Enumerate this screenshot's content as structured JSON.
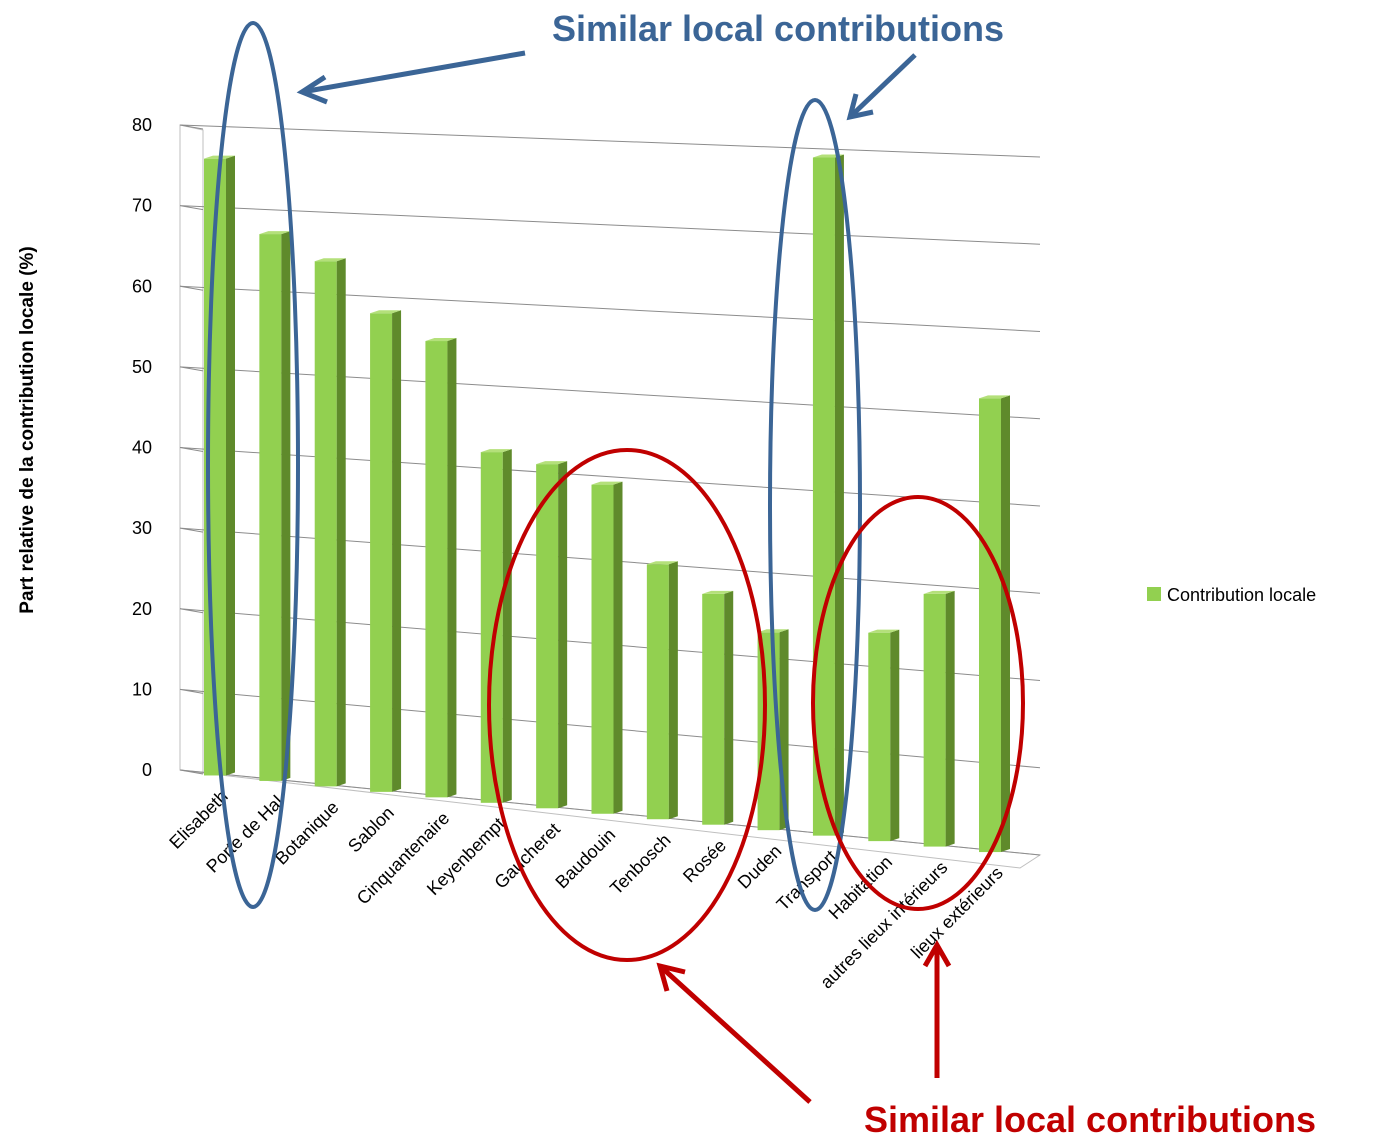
{
  "chart_data": {
    "type": "bar3d",
    "y_axis_label": "Part relative de la contribution locale (%)",
    "categories": [
      "Elisabeth",
      "Porte de Hal",
      "Botanique",
      "Sablon",
      "Cinquantenaire",
      "Keyenbempt",
      "Gaucheret",
      "Baudouin",
      "Tenbosch",
      "Rosée",
      "Duden",
      "Transport",
      "Habitation",
      "autres lieux intérieurs",
      "lieux extérieurs"
    ],
    "series": [
      {
        "name": "Contribution locale",
        "color": "#92d050",
        "values": [
          76,
          67,
          64,
          58,
          55,
          42,
          41,
          39,
          30,
          27,
          23,
          79,
          24,
          29,
          52
        ]
      }
    ],
    "ylim": [
      0,
      80
    ],
    "yticks": [
      0,
      10,
      20,
      30,
      40,
      50,
      60,
      70,
      80
    ],
    "grid": true,
    "legend": "right",
    "annotations": [
      {
        "text": "Similar local contributions",
        "color": "#3b6596"
      },
      {
        "text": "Similar local contributions",
        "color": "#c00000"
      }
    ]
  }
}
